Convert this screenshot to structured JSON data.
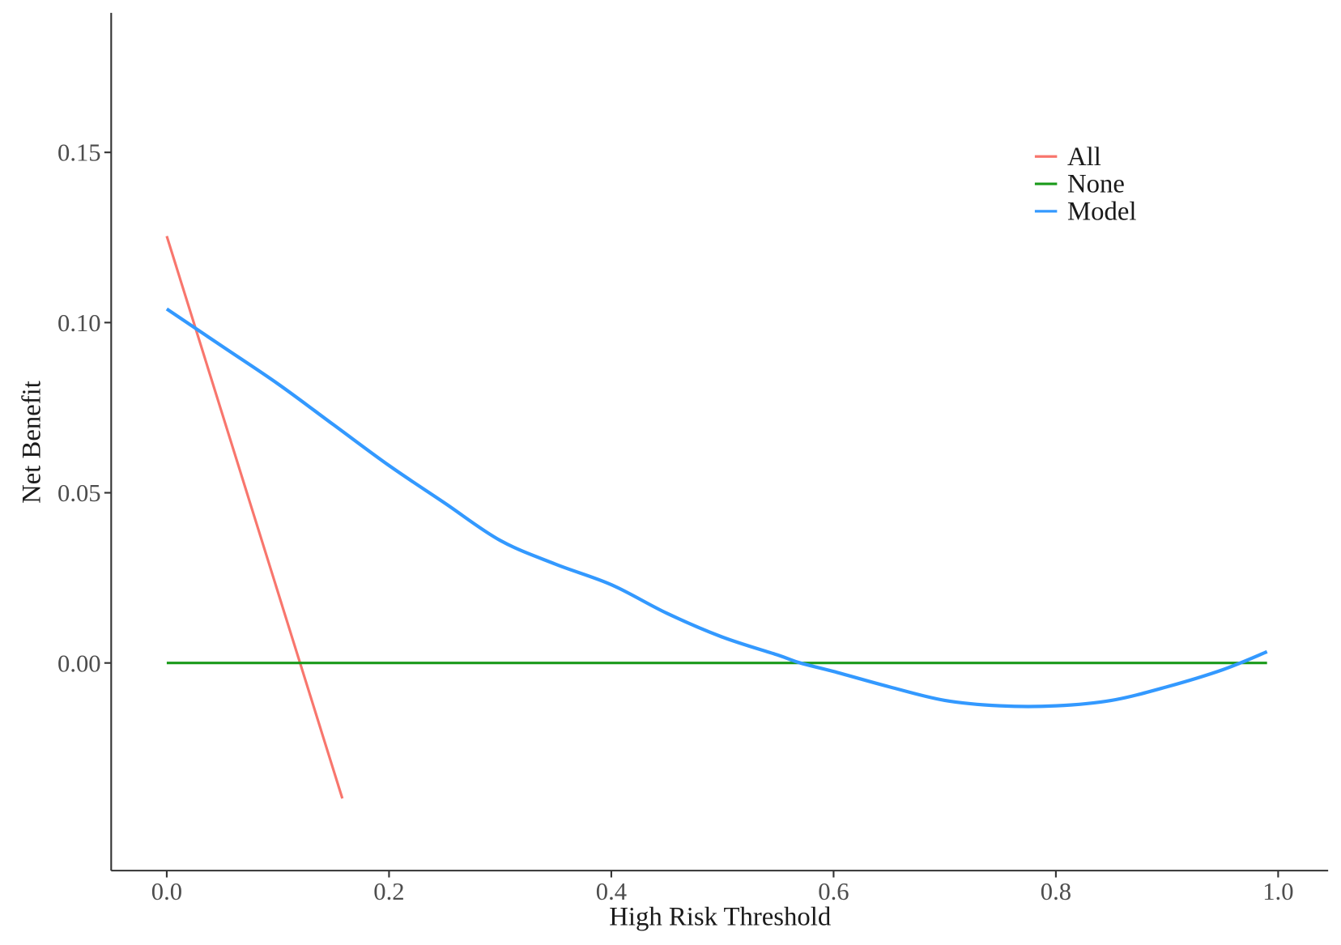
{
  "chart_data": {
    "type": "line",
    "title": "",
    "xlabel": "High Risk Threshold",
    "ylabel": "Net Benefit",
    "xlim": [
      -0.05,
      1.045
    ],
    "ylim": [
      -0.061,
      0.191
    ],
    "x_ticks": [
      "0.0",
      "0.2",
      "0.4",
      "0.6",
      "0.8",
      "1.0"
    ],
    "y_ticks": [
      "0.00",
      "0.05",
      "0.10",
      "0.15"
    ],
    "grid": false,
    "legend_position": "top-right",
    "series": [
      {
        "name": "All",
        "color": "#F8766D",
        "x": [
          0.0,
          0.158
        ],
        "y": [
          0.1254,
          -0.0398
        ]
      },
      {
        "name": "None",
        "color": "#1a9a1a",
        "x": [
          0.0,
          0.99
        ],
        "y": [
          0.0,
          0.0
        ]
      },
      {
        "name": "Model",
        "color": "#3399FF",
        "x": [
          0.0,
          0.05,
          0.1,
          0.15,
          0.2,
          0.25,
          0.3,
          0.35,
          0.4,
          0.45,
          0.5,
          0.55,
          0.57,
          0.6,
          0.65,
          0.7,
          0.75,
          0.8,
          0.85,
          0.9,
          0.95,
          0.99
        ],
        "y": [
          0.104,
          0.093,
          0.082,
          0.07,
          0.058,
          0.047,
          0.036,
          0.029,
          0.023,
          0.0146,
          0.0076,
          0.0023,
          0.0,
          -0.0025,
          -0.007,
          -0.011,
          -0.0126,
          -0.0126,
          -0.011,
          -0.007,
          -0.002,
          0.0033
        ]
      }
    ]
  }
}
